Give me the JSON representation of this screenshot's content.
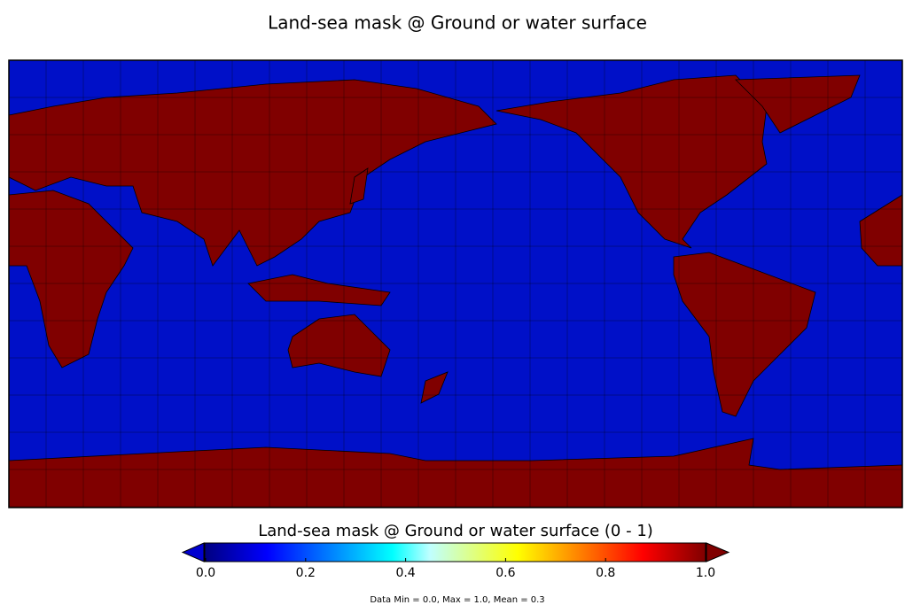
{
  "title": "Land-sea mask @ Ground or water surface",
  "colorbar": {
    "label": "Land-sea mask @ Ground or water surface (0 - 1)",
    "lim": [
      0,
      1
    ],
    "ticks": [
      {
        "value": 0,
        "label": "0.0"
      },
      {
        "value": 0.2,
        "label": "0.2"
      },
      {
        "value": 0.4,
        "label": "0.4"
      },
      {
        "value": 0.6,
        "label": "0.6"
      },
      {
        "value": 0.8,
        "label": "0.8"
      },
      {
        "value": 1,
        "label": "1.0"
      }
    ]
  },
  "footer": "Data Min = 0.0, Max = 1.0, Mean = 0.3"
}
